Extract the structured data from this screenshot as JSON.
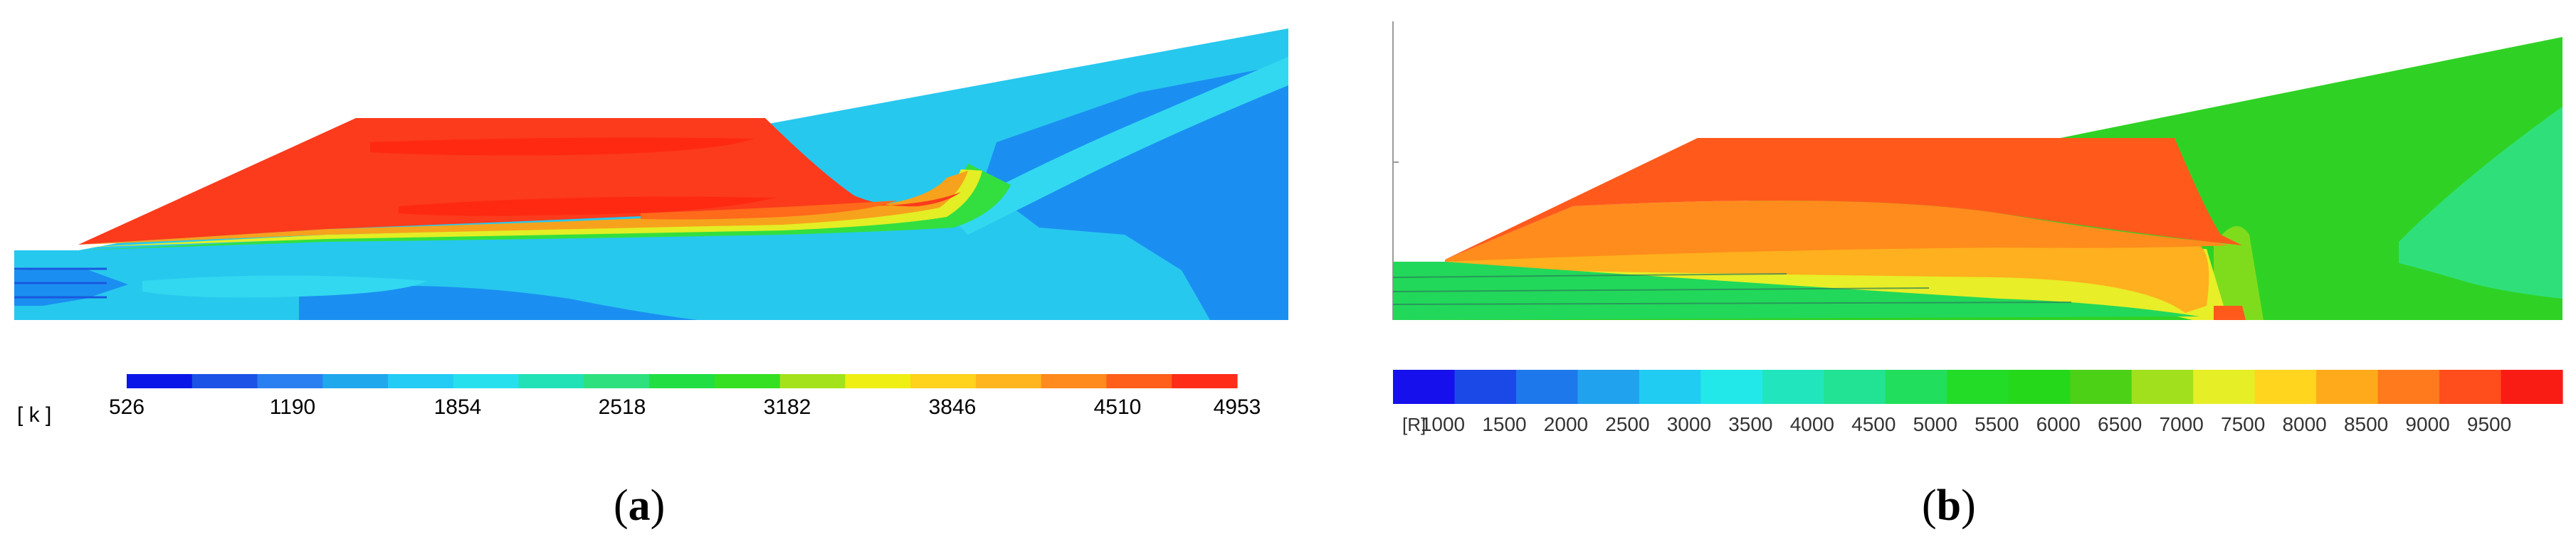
{
  "panels": [
    {
      "id": "a",
      "caption_letter": "a",
      "colorbar": {
        "unit_label": "[ k ]",
        "tick_labels": [
          "526",
          "1190",
          "1854",
          "2518",
          "3182",
          "3846",
          "4510",
          "4953"
        ],
        "colors": [
          "#0a16e8",
          "#1c52e6",
          "#2a80f0",
          "#1fa8ec",
          "#22ccf4",
          "#27e0ee",
          "#21e2b6",
          "#2fe07e",
          "#21df43",
          "#35df21",
          "#a4e21b",
          "#f0ef13",
          "#ffd21b",
          "#ffb51d",
          "#ff8a1d",
          "#ff5e1b",
          "#ff2c18"
        ]
      },
      "field_colors": {
        "shock_layer": "#fb3b1c",
        "shock_hot": "#ff2912",
        "shock_warm": "#ff6a1b",
        "boundary": "#f7a21c",
        "boundary_yellow": "#e3ee24",
        "boundary_green": "#33df3f",
        "cool_flow": "#27c8ee",
        "cool_deep": "#1a8ff1",
        "cool_light": "#32d8f0"
      }
    },
    {
      "id": "b",
      "caption_letter": "b",
      "colorbar": {
        "unit_label": "[R]",
        "tick_labels": [
          "1000",
          "1500",
          "2000",
          "2500",
          "3000",
          "3500",
          "4000",
          "4500",
          "5000",
          "5500",
          "6000",
          "6500",
          "7000",
          "7500",
          "8000",
          "8500",
          "9000",
          "9500"
        ],
        "colors": [
          "#1510ec",
          "#1a49e8",
          "#1d78ec",
          "#20a2ee",
          "#21ccf2",
          "#22e8ea",
          "#21e6bd",
          "#22e294",
          "#21df5c",
          "#22dc28",
          "#25d81a",
          "#4dd117",
          "#a0e01c",
          "#e6ee26",
          "#ffd51d",
          "#ffaa1a",
          "#ff7a1c",
          "#ff4d1c",
          "#f91c14"
        ]
      },
      "field_colors": {
        "shock_layer": "#ff5a1c",
        "shock_mid": "#ff8c1c",
        "boundary": "#ffb01e",
        "boundary_yellow": "#e8ee27",
        "warm_green": "#7fdc1d",
        "main_green": "#2fd224",
        "light_green": "#2fe07a",
        "inlet": "#22d85a"
      }
    }
  ]
}
